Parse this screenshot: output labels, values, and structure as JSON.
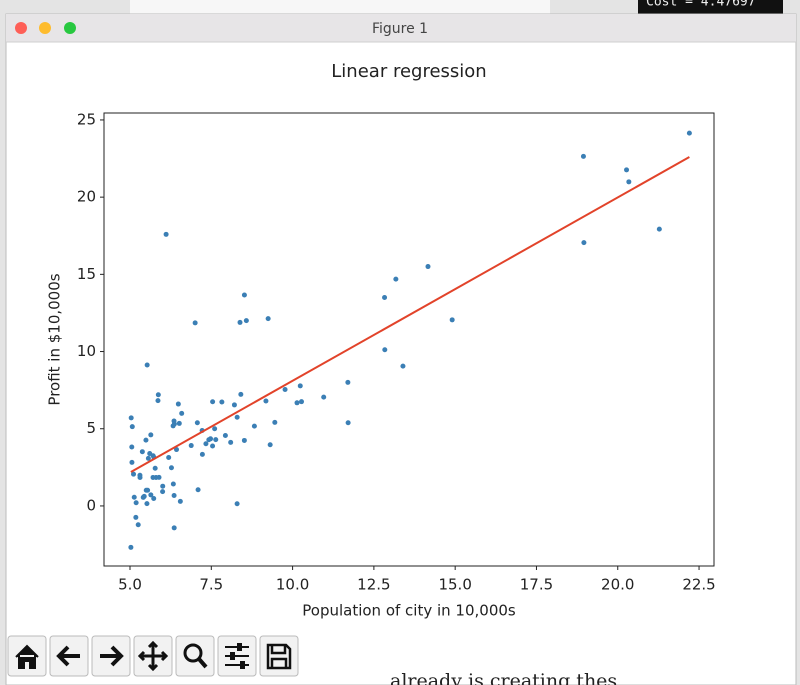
{
  "window": {
    "title": "Figure 1"
  },
  "background": {
    "terminal_text": "Cost = 4.47697",
    "document_text": "already is creating thes"
  },
  "chart_data": {
    "type": "scatter",
    "title": "Linear regression",
    "xlabel": "Population of city in 10,000s",
    "ylabel": "Profit in $10,000s",
    "x": [
      6.1101,
      5.5277,
      8.5186,
      7.0032,
      5.8598,
      8.3829,
      7.4764,
      8.5781,
      6.4862,
      5.0546,
      5.7107,
      14.164,
      5.734,
      8.4084,
      5.6407,
      5.3794,
      6.3654,
      5.1301,
      6.4296,
      7.0708,
      6.1891,
      20.27,
      5.4901,
      6.3261,
      5.5649,
      18.945,
      12.828,
      10.957,
      13.176,
      22.203,
      5.2524,
      6.5894,
      9.2482,
      5.8918,
      8.2111,
      7.9334,
      8.0959,
      5.6063,
      12.836,
      6.3534,
      5.4069,
      6.8825,
      11.708,
      5.7737,
      7.8247,
      7.0931,
      5.0702,
      5.8014,
      11.7,
      5.5416,
      7.5402,
      5.3077,
      7.4239,
      7.6031,
      6.3328,
      6.3589,
      6.2742,
      5.6397,
      9.3102,
      9.4536,
      8.8254,
      5.1793,
      21.279,
      14.908,
      18.959,
      7.2182,
      8.2951,
      10.236,
      5.4994,
      20.341,
      10.136,
      7.3345,
      6.0062,
      7.2259,
      5.0269,
      6.5479,
      7.5386,
      5.0365,
      10.274,
      5.1077,
      5.7292,
      5.1884,
      6.3557,
      9.7687,
      6.5159,
      8.5172,
      9.1802,
      6.002,
      5.5204,
      5.0594,
      5.7077,
      7.6366,
      5.8707,
      5.3054,
      8.2934,
      13.394,
      5.4369
    ],
    "values": [
      17.592,
      9.1302,
      13.662,
      11.854,
      6.8233,
      11.886,
      4.3483,
      12,
      6.5987,
      3.8166,
      3.2522,
      15.505,
      3.1551,
      7.2258,
      0.71618,
      3.5129,
      5.3048,
      0.56077,
      3.6518,
      5.3893,
      3.1386,
      21.767,
      4.263,
      5.1875,
      3.0825,
      22.638,
      13.501,
      7.0467,
      14.692,
      24.147,
      -1.22,
      5.9966,
      12.134,
      1.8495,
      6.5426,
      4.5623,
      4.1164,
      3.3928,
      10.117,
      5.4974,
      0.55657,
      3.9115,
      5.3854,
      2.4406,
      6.7318,
      1.0463,
      5.1337,
      1.844,
      8.0043,
      1.0179,
      6.7504,
      1.8396,
      4.2885,
      4.9981,
      1.4233,
      -1.4211,
      2.4756,
      4.6042,
      3.9624,
      5.4141,
      5.1694,
      -0.74279,
      17.929,
      12.054,
      17.054,
      4.8852,
      5.7442,
      7.7754,
      1.0173,
      20.992,
      6.6799,
      4.0259,
      1.2784,
      3.3411,
      -2.6807,
      0.29678,
      3.8845,
      5.7014,
      6.7526,
      2.0576,
      0.47953,
      0.20421,
      0.67861,
      7.5435,
      5.3436,
      4.2415,
      6.7981,
      0.92695,
      0.152,
      2.8214,
      1.8451,
      4.2959,
      7.2029,
      1.9869,
      0.14454,
      9.0551,
      0.61705
    ],
    "color": "#3b7fb5",
    "line": {
      "x": [
        5.0269,
        22.203
      ],
      "y": [
        2.2,
        22.6
      ],
      "color": "#e2432a"
    },
    "xlim": [
      4.2,
      22.96
    ],
    "ylim": [
      -3.89,
      25.45
    ],
    "xticks": [
      {
        "value": 5,
        "label": "5.0"
      },
      7.5,
      {
        "value": 10,
        "label": "10.0"
      },
      12.5,
      {
        "value": 15,
        "label": "15.0"
      },
      17.5,
      {
        "value": 20,
        "label": "20.0"
      },
      22.5
    ],
    "yticks": [
      0,
      5,
      10,
      15,
      20,
      25
    ]
  }
}
